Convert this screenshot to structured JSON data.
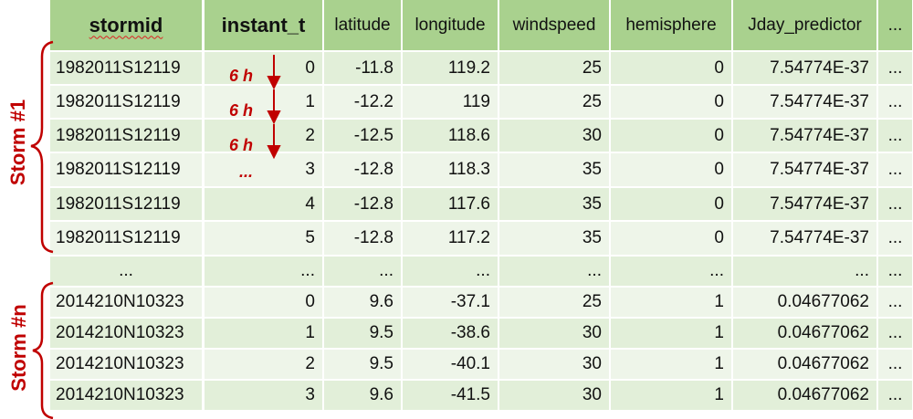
{
  "columns": [
    {
      "label": "stormid",
      "bold": true,
      "squiggle": true
    },
    {
      "label": "instant_t",
      "bold": true
    },
    {
      "label": "latitude"
    },
    {
      "label": "longitude"
    },
    {
      "label": "windspeed"
    },
    {
      "label": "hemisphere"
    },
    {
      "label": "Jday_predictor"
    },
    {
      "label": "..."
    }
  ],
  "rows": [
    [
      "1982011S12119",
      "0",
      "-11.8",
      "119.2",
      "25",
      "0",
      "7.54774E-37",
      "..."
    ],
    [
      "1982011S12119",
      "1",
      "-12.2",
      "119",
      "25",
      "0",
      "7.54774E-37",
      "..."
    ],
    [
      "1982011S12119",
      "2",
      "-12.5",
      "118.6",
      "30",
      "0",
      "7.54774E-37",
      "..."
    ],
    [
      "1982011S12119",
      "3",
      "-12.8",
      "118.3",
      "35",
      "0",
      "7.54774E-37",
      "..."
    ],
    [
      "1982011S12119",
      "4",
      "-12.8",
      "117.6",
      "35",
      "0",
      "7.54774E-37",
      "..."
    ],
    [
      "1982011S12119",
      "5",
      "-12.8",
      "117.2",
      "35",
      "0",
      "7.54774E-37",
      "..."
    ],
    [
      "...",
      "...",
      "...",
      "...",
      "...",
      "...",
      "...",
      "..."
    ],
    [
      "2014210N10323",
      "0",
      "9.6",
      "-37.1",
      "25",
      "1",
      "0.04677062",
      "..."
    ],
    [
      "2014210N10323",
      "1",
      "9.5",
      "-38.6",
      "30",
      "1",
      "0.04677062",
      "..."
    ],
    [
      "2014210N10323",
      "2",
      "9.5",
      "-40.1",
      "30",
      "1",
      "0.04677062",
      "..."
    ],
    [
      "2014210N10323",
      "3",
      "9.6",
      "-41.5",
      "30",
      "1",
      "0.04677062",
      "..."
    ]
  ],
  "annotations": {
    "interval_labels": [
      "6 h",
      "6 h",
      "6 h",
      "..."
    ],
    "storm_1_label": "Storm #1",
    "storm_n_label": "Storm #n"
  },
  "colors": {
    "header_bg": "#a9d18e",
    "row_bg_a": "#e2efd9",
    "row_bg_b": "#eef5e9",
    "accent_red": "#c00000"
  }
}
